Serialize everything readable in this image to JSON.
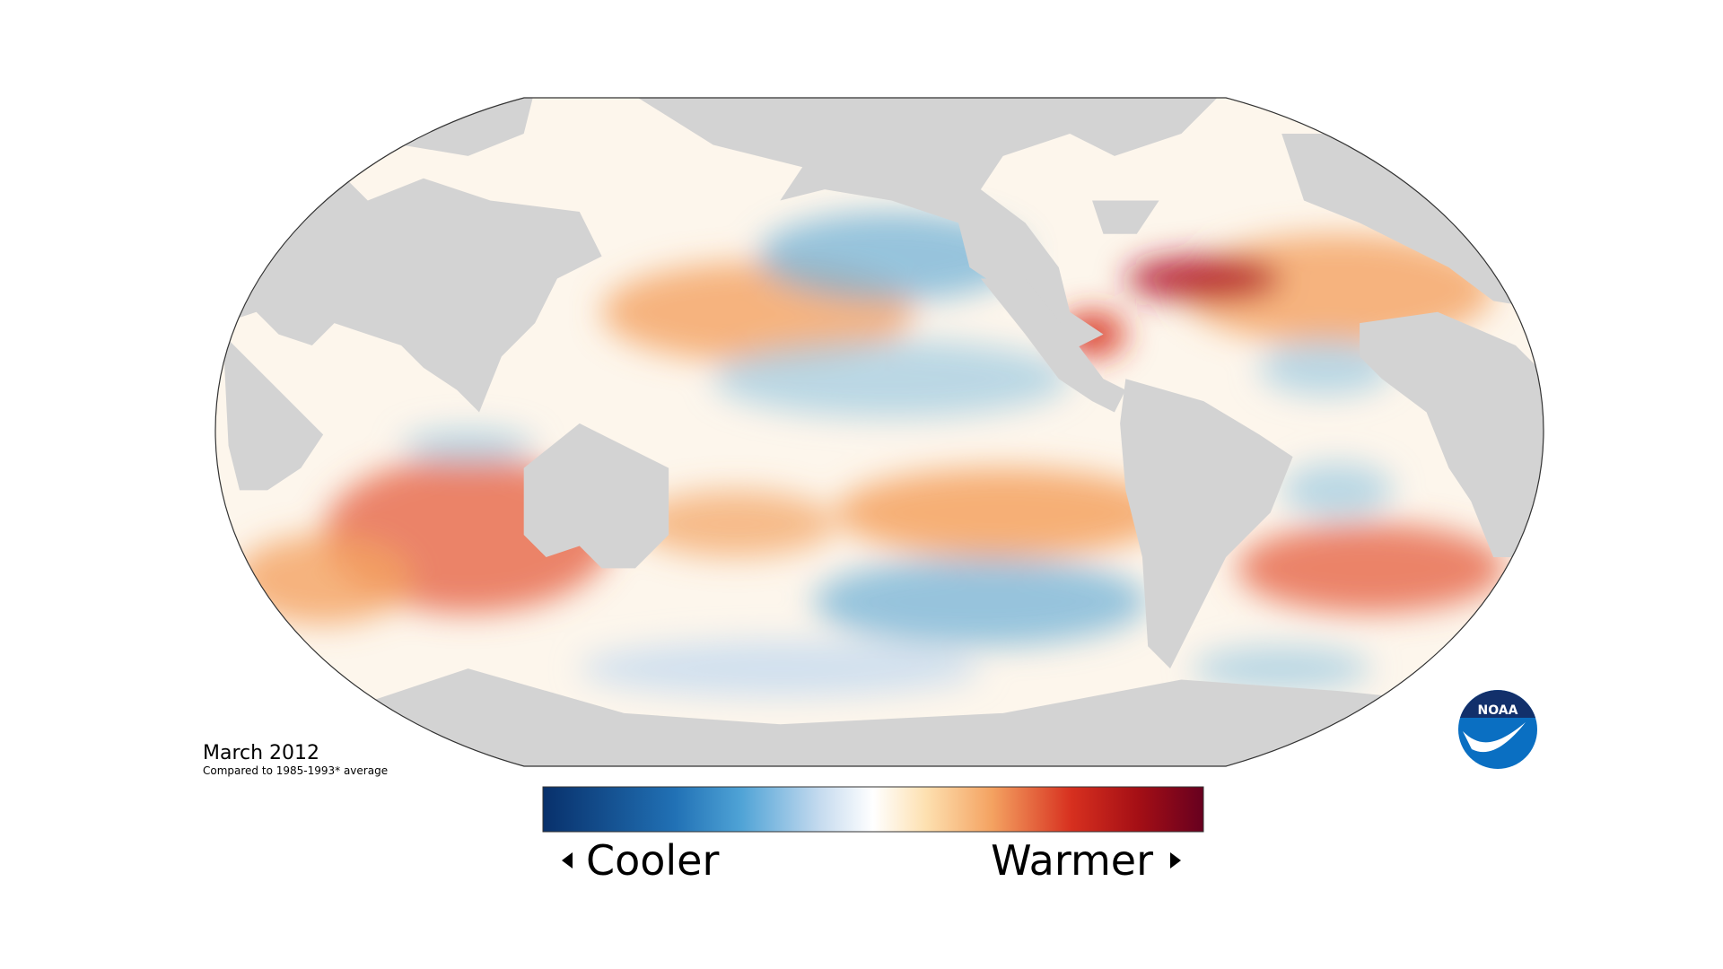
{
  "map": {
    "date_label": "March 2012",
    "subtitle": "Compared to 1985-1993* average"
  },
  "legend": {
    "low_label": "Cooler",
    "high_label": "Warmer"
  },
  "logo": {
    "text": "NOAA"
  }
}
